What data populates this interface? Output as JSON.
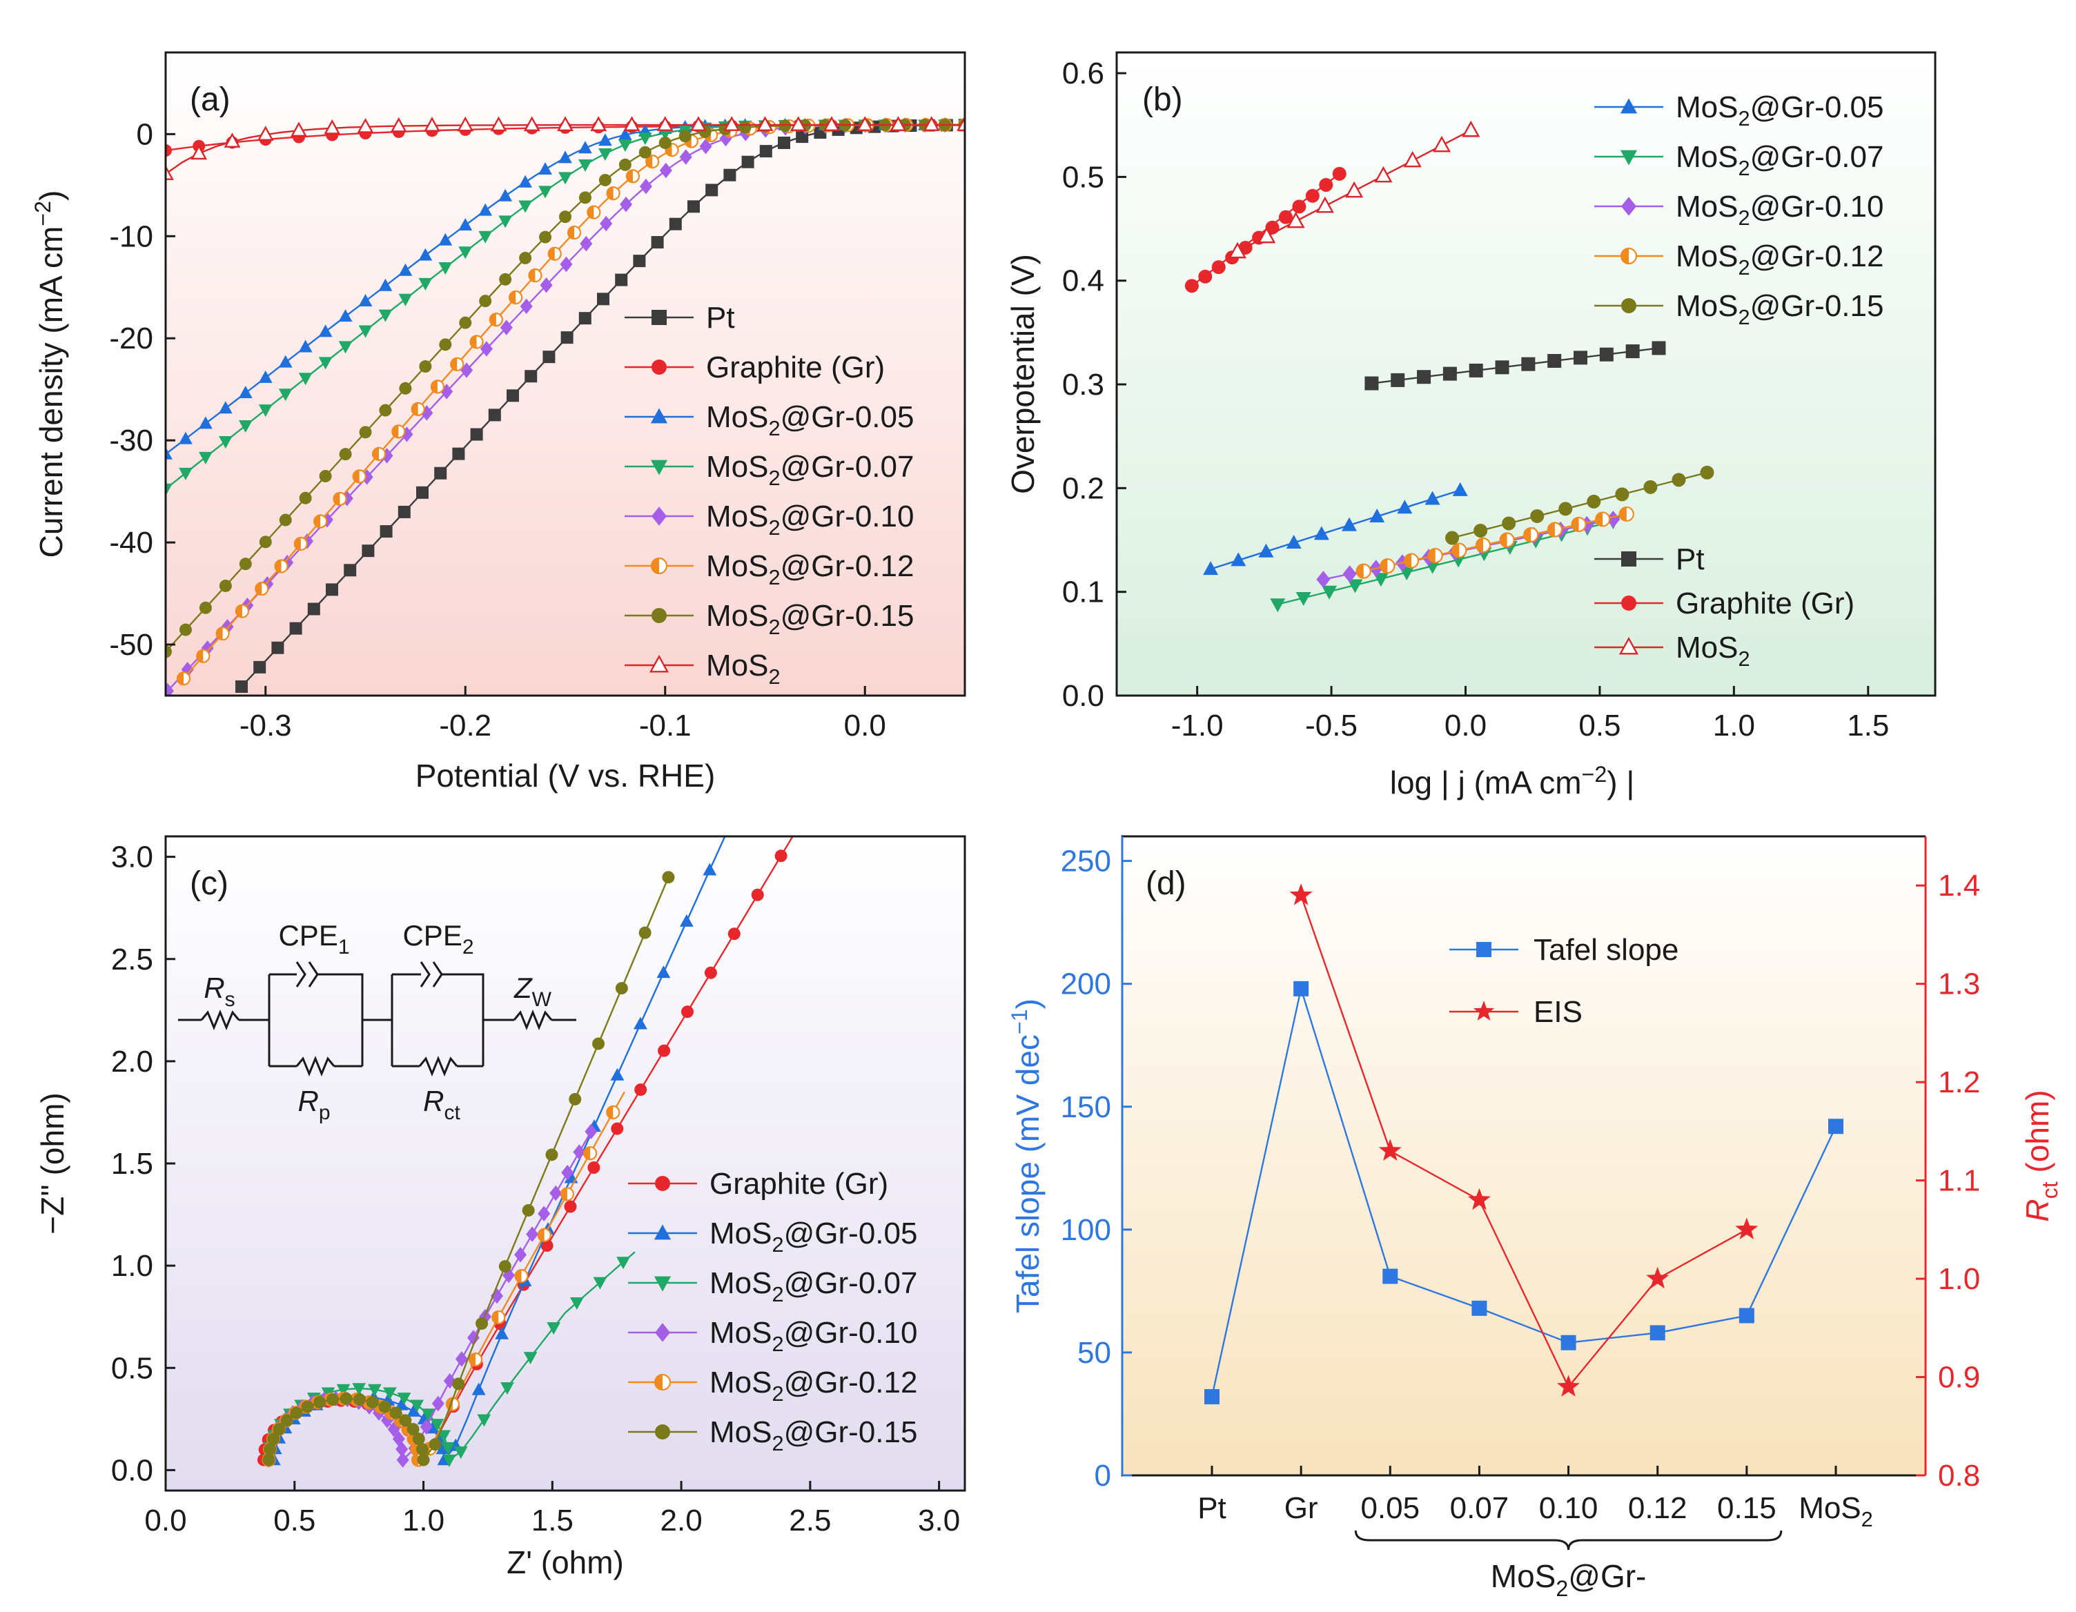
{
  "colors": {
    "pt": "#3c3c3c",
    "gr": "#e8272d",
    "mos05": "#1f6fdc",
    "mos07": "#20a866",
    "mos10": "#a55ee8",
    "mos12": "#f08a1e",
    "mos15": "#7b7a1a",
    "mos2": "#d8262b",
    "tafel": "#2f77e0",
    "eis": "#e8272d"
  },
  "series_labels": {
    "pt": "Pt",
    "gr": "Graphite (Gr)",
    "mos05": "MoS2@Gr-0.05",
    "mos07": "MoS2@Gr-0.07",
    "mos10": "MoS2@Gr-0.10",
    "mos12": "MoS2@Gr-0.12",
    "mos15": "MoS2@Gr-0.15",
    "mos2": "MoS2"
  },
  "chart_data": [
    {
      "type": "line",
      "panel_label": "(a)",
      "title": "",
      "xlabel": "Potential (V vs. RHE)",
      "ylabel": "Current density (mA cm−2)",
      "xlim": [
        -0.35,
        0.05
      ],
      "ylim": [
        -55,
        8
      ],
      "xticks": [
        -0.3,
        -0.2,
        -0.1,
        0.0
      ],
      "xtick_labels": [
        "-0.3",
        "-0.2",
        "-0.1",
        "0.0"
      ],
      "yticks": [
        0,
        -10,
        -20,
        -30,
        -40,
        -50
      ],
      "ytick_labels": [
        "0",
        "-10",
        "-20",
        "-30",
        "-40",
        "-50"
      ],
      "background": "pink gradient",
      "legend_position": "lower-right",
      "series": [
        {
          "key": "pt",
          "name": "Pt",
          "marker": "square",
          "onset": -0.05,
          "slope": 210,
          "x_start": -0.312
        },
        {
          "key": "gr",
          "name": "Graphite (Gr)",
          "marker": "circle",
          "linear": [
            -1.6,
            4.5
          ]
        },
        {
          "key": "mos05",
          "name": "MoS2@Gr-0.05",
          "marker": "triangle-up",
          "onset": -0.135,
          "slope": 150,
          "x_start": -0.35
        },
        {
          "key": "mos07",
          "name": "MoS2@Gr-0.07",
          "marker": "triangle-down",
          "onset": -0.12,
          "slope": 155,
          "x_start": -0.35
        },
        {
          "key": "mos10",
          "name": "MoS2@Gr-0.10",
          "marker": "diamond",
          "onset": -0.085,
          "slope": 210,
          "x_start": -0.349
        },
        {
          "key": "mos12",
          "name": "MoS2@Gr-0.12",
          "marker": "half-circle",
          "onset": -0.1,
          "slope": 225,
          "x_start": -0.341
        },
        {
          "key": "mos15",
          "name": "MoS2@Gr-0.15",
          "marker": "circle",
          "onset": -0.11,
          "slope": 215,
          "x_start": -0.35
        },
        {
          "key": "mos2",
          "name": "MoS2",
          "marker": "triangle-open",
          "linear": [
            -3.9,
            13
          ]
        }
      ]
    },
    {
      "type": "line",
      "panel_label": "(b)",
      "title": "",
      "xlabel": "log | j (mA cm−2) |",
      "ylabel": "Overpotential (V)",
      "xlim": [
        -1.3,
        1.75
      ],
      "ylim": [
        0.0,
        0.62
      ],
      "xticks": [
        -1.0,
        -0.5,
        0.0,
        0.5,
        1.0,
        1.5
      ],
      "xtick_labels": [
        "-1.0",
        "-0.5",
        "0.0",
        "0.5",
        "1.0",
        "1.5"
      ],
      "yticks": [
        0.0,
        0.1,
        0.2,
        0.3,
        0.4,
        0.5,
        0.6
      ],
      "ytick_labels": [
        "0.0",
        "0.1",
        "0.2",
        "0.3",
        "0.4",
        "0.5",
        "0.6"
      ],
      "background": "green gradient",
      "series": [
        {
          "key": "pt",
          "name": "Pt",
          "marker": "square",
          "x": [
            -0.35,
            0.72
          ],
          "y": [
            0.301,
            0.335
          ],
          "n": 12
        },
        {
          "key": "gr",
          "name": "Graphite (Gr)",
          "marker": "circle",
          "x": [
            -1.02,
            -0.47
          ],
          "y": [
            0.395,
            0.503
          ],
          "n": 12
        },
        {
          "key": "mos05",
          "name": "MoS2@Gr-0.05",
          "marker": "triangle-up",
          "x": [
            -0.95,
            -0.02
          ],
          "y": [
            0.122,
            0.198
          ],
          "n": 10
        },
        {
          "key": "mos07",
          "name": "MoS2@Gr-0.07",
          "marker": "triangle-down",
          "x": [
            -0.7,
            0.55
          ],
          "y": [
            0.088,
            0.168
          ],
          "n": 14
        },
        {
          "key": "mos10",
          "name": "MoS2@Gr-0.10",
          "marker": "diamond",
          "x": [
            -0.53,
            0.55
          ],
          "y": [
            0.112,
            0.17
          ],
          "n": 12
        },
        {
          "key": "mos12",
          "name": "MoS2@Gr-0.12",
          "marker": "half-circle",
          "x": [
            -0.38,
            0.6
          ],
          "y": [
            0.12,
            0.175
          ],
          "n": 12
        },
        {
          "key": "mos15",
          "name": "MoS2@Gr-0.15",
          "marker": "circle",
          "x": [
            -0.05,
            0.9
          ],
          "y": [
            0.152,
            0.215
          ],
          "n": 10
        },
        {
          "key": "mos2",
          "name": "MoS2",
          "marker": "triangle-open",
          "x": [
            -0.85,
            0.02
          ],
          "y": [
            0.428,
            0.545
          ],
          "n": 9
        }
      ]
    },
    {
      "type": "scatter",
      "panel_label": "(c)",
      "title": "",
      "xlabel": "Z' (ohm)",
      "ylabel": "−Z'' (ohm)",
      "xlim": [
        0.0,
        3.1
      ],
      "ylim": [
        -0.1,
        3.1
      ],
      "xticks": [
        0.0,
        0.5,
        1.0,
        1.5,
        2.0,
        2.5,
        3.0
      ],
      "xtick_labels": [
        "0.0",
        "0.5",
        "1.0",
        "1.5",
        "2.0",
        "2.5",
        "3.0"
      ],
      "yticks": [
        0.0,
        0.5,
        1.0,
        1.5,
        2.0,
        2.5,
        3.0
      ],
      "ytick_labels": [
        "0.0",
        "0.5",
        "1.0",
        "1.5",
        "2.0",
        "2.5",
        "3.0"
      ],
      "background": "lavender gradient",
      "circuit": {
        "rs": "R",
        "rs_sub": "s",
        "cpe1": "CPE",
        "cpe1_sub": "1",
        "cpe2": "CPE",
        "cpe2_sub": "2",
        "zw": "Z",
        "zw_sub": "W",
        "rp": "R",
        "rp_sub": "p",
        "rct": "R",
        "rct_sub": "ct"
      },
      "series": [
        {
          "key": "gr",
          "name": "Graphite (Gr)",
          "marker": "circle",
          "arc": [
            0.38,
            0.98,
            0.29
          ],
          "tail_slope": 2.1,
          "tail_x_end": 2.75
        },
        {
          "key": "mos05",
          "name": "MoS2@Gr-0.05",
          "marker": "triangle-up",
          "arc": [
            0.42,
            1.08,
            0.31
          ],
          "tail_slope": 2.8,
          "tail_x_end": 2.2
        },
        {
          "key": "mos07",
          "name": "MoS2@Gr-0.07",
          "marker": "triangle-down",
          "arc": [
            0.4,
            1.1,
            0.35
          ],
          "tail_slope": 1.6,
          "tail_x_end": 1.82
        },
        {
          "key": "mos10",
          "name": "MoS2@Gr-0.10",
          "marker": "diamond",
          "arc": [
            0.4,
            0.92,
            0.3
          ],
          "tail_slope": 2.2,
          "tail_x_end": 1.65
        },
        {
          "key": "mos12",
          "name": "MoS2@Gr-0.12",
          "marker": "half-circle",
          "arc": [
            0.4,
            0.98,
            0.3
          ],
          "tail_slope": 2.25,
          "tail_x_end": 1.78
        },
        {
          "key": "mos15",
          "name": "MoS2@Gr-0.15",
          "marker": "circle",
          "arc": [
            0.4,
            1.0,
            0.3
          ],
          "tail_slope": 3.0,
          "tail_x_end": 1.95
        }
      ]
    },
    {
      "type": "line",
      "panel_label": "(d)",
      "title": "",
      "categories": [
        "Pt",
        "Gr",
        "0.05",
        "0.07",
        "0.10",
        "0.12",
        "0.15",
        "MoS2"
      ],
      "group_label": "MoS2@Gr-",
      "xlabel": "",
      "ylabel": "Tafel slope (mV dec−1)",
      "y2label": "Rct (ohm)",
      "ylim": [
        0,
        260
      ],
      "yticks": [
        0,
        50,
        100,
        150,
        200,
        250
      ],
      "ytick_labels": [
        "0",
        "50",
        "100",
        "150",
        "200",
        "250"
      ],
      "y2lim": [
        0.8,
        1.45
      ],
      "y2ticks": [
        0.8,
        0.9,
        1.0,
        1.1,
        1.2,
        1.3,
        1.4
      ],
      "y2tick_labels": [
        "0.8",
        "0.9",
        "1.0",
        "1.1",
        "1.2",
        "1.3",
        "1.4"
      ],
      "background": "yellow gradient",
      "series": [
        {
          "key": "tafel",
          "name": "Tafel slope",
          "marker": "square",
          "axis": "left",
          "values": [
            32,
            198,
            81,
            68,
            54,
            58,
            65,
            142
          ]
        },
        {
          "key": "eis",
          "name": "EIS",
          "marker": "star",
          "axis": "right",
          "values": [
            null,
            1.39,
            1.13,
            1.08,
            0.89,
            1.0,
            1.05,
            null
          ]
        }
      ]
    }
  ]
}
